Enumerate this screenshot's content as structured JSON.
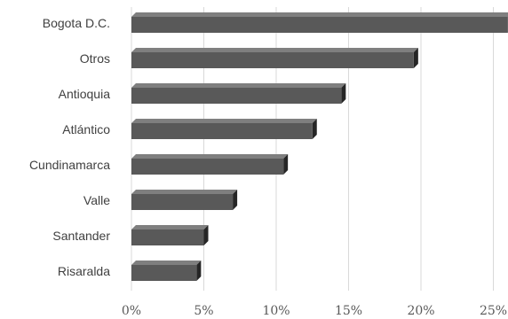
{
  "chart_data": {
    "type": "bar",
    "orientation": "horizontal",
    "categories": [
      "Bogota D.C.",
      "Otros",
      "Antioquia",
      "Atlántico",
      "Cundinamarca",
      "Valle",
      "Santander",
      "Risaralda"
    ],
    "values": [
      26,
      19.5,
      14.5,
      12.5,
      10.5,
      7,
      5,
      4.5
    ],
    "x_ticks": [
      "0%",
      "5%",
      "10%",
      "15%",
      "20%",
      "25%"
    ],
    "xlim": [
      0,
      26
    ],
    "grid": true,
    "bar_color": "#595959",
    "bar_side_color": "#262626",
    "bar_top_color": "#7f7f7f"
  }
}
